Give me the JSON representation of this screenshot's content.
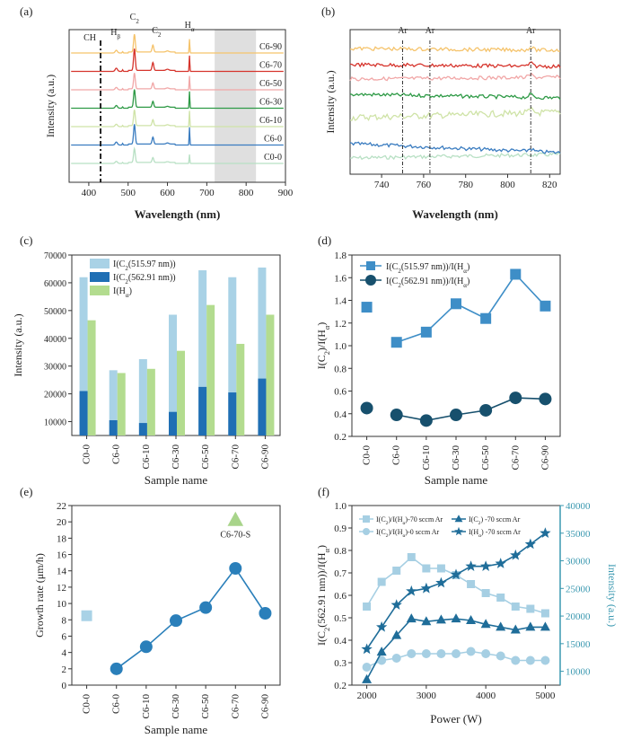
{
  "colors": {
    "light_blue": "#a9d2e6",
    "dark_blue": "#1f6fb4",
    "light_green": "#b3dc8f",
    "mid_blue": "#3e8ec7",
    "navy": "#17506d",
    "teal_axis": "#3a98b0",
    "shade": "#d2d2d2"
  },
  "chart_data": [
    {
      "panel": "(a)",
      "type": "line",
      "xlabel": "Wavelength (nm)",
      "ylabel": "Intensity (a.u.)",
      "xlim": [
        350,
        900
      ],
      "xticks": [
        "400",
        "500",
        "600",
        "700",
        "800",
        "900"
      ],
      "annotations": [
        {
          "label": "CH",
          "x": 430
        },
        {
          "label": "Hβ",
          "x": 486
        },
        {
          "label": "C2",
          "x": 516
        },
        {
          "label": "C2",
          "x": 563
        },
        {
          "label": "Hα",
          "x": 656
        }
      ],
      "dashed_line_x": 430,
      "shaded_range": [
        720,
        825
      ],
      "series": [
        {
          "name": "C0-0",
          "color": "#b8e0c4",
          "offset": 0,
          "peaks": {
            "C2a": 0.7,
            "C2b": 0.25,
            "Ha": 0.45,
            "Hb": 0.05
          }
        },
        {
          "name": "C6-0",
          "color": "#3a7cc0",
          "offset": 1,
          "peaks": {
            "C2a": 1.0,
            "C2b": 0.35,
            "Ha": 0.9,
            "Hb": 0.08
          }
        },
        {
          "name": "C6-10",
          "color": "#cfe3a7",
          "offset": 2,
          "peaks": {
            "C2a": 0.8,
            "C2b": 0.3,
            "Ha": 0.8,
            "Hb": 0.06
          }
        },
        {
          "name": "C6-30",
          "color": "#2e9a46",
          "offset": 3,
          "peaks": {
            "C2a": 0.9,
            "C2b": 0.3,
            "Ha": 0.85,
            "Hb": 0.07
          }
        },
        {
          "name": "C6-50",
          "color": "#f1a7a7",
          "offset": 4,
          "peaks": {
            "C2a": 0.8,
            "C2b": 0.3,
            "Ha": 0.7,
            "Hb": 0.06
          }
        },
        {
          "name": "C6-70",
          "color": "#d6342c",
          "offset": 5,
          "peaks": {
            "C2a": 1.1,
            "C2b": 0.4,
            "Ha": 0.8,
            "Hb": 0.08
          }
        },
        {
          "name": "C6-90",
          "color": "#f5c36b",
          "offset": 6,
          "peaks": {
            "C2a": 0.9,
            "C2b": 0.35,
            "Ha": 0.7,
            "Hb": 0.07
          }
        }
      ]
    },
    {
      "panel": "(b)",
      "type": "line",
      "xlabel": "Wavelength (nm)",
      "ylabel": "Intensity (a.u.)",
      "xlim": [
        725,
        825
      ],
      "xticks": [
        "740",
        "760",
        "780",
        "800",
        "820"
      ],
      "annotations": [
        {
          "label": "Ar",
          "x": 750
        },
        {
          "label": "Ar",
          "x": 763
        },
        {
          "label": "Ar",
          "x": 811
        }
      ],
      "series": [
        {
          "name": "C0-0",
          "color": "#b8e0c4",
          "offset": 0
        },
        {
          "name": "C6-0",
          "color": "#3a7cc0",
          "offset": 1
        },
        {
          "name": "C6-10",
          "color": "#cfe3a7",
          "offset": 2
        },
        {
          "name": "C6-30",
          "color": "#2e9a46",
          "offset": 3
        },
        {
          "name": "C6-50",
          "color": "#f1a7a7",
          "offset": 4
        },
        {
          "name": "C6-70",
          "color": "#d6342c",
          "offset": 5
        },
        {
          "name": "C6-90",
          "color": "#f5c36b",
          "offset": 6
        }
      ]
    },
    {
      "panel": "(c)",
      "type": "bar",
      "xlabel": "Sample name",
      "ylabel": "Intensity (a.u.)",
      "ylim": [
        5000,
        70000
      ],
      "yticks": [
        "10000",
        "20000",
        "30000",
        "40000",
        "50000",
        "60000",
        "70000"
      ],
      "categories": [
        "C0-0",
        "C6-0",
        "C6-10",
        "C6-30",
        "C6-50",
        "C6-70",
        "C6-90"
      ],
      "series": [
        {
          "name": "I(C2(515.97 nm))",
          "color": "#a9d2e6",
          "values": [
            62000,
            28500,
            32500,
            48500,
            64500,
            62000,
            65500
          ]
        },
        {
          "name": "I(C2(562.91 nm))",
          "color": "#1f6fb4",
          "values": [
            21000,
            10500,
            9500,
            13500,
            22500,
            20500,
            25500
          ]
        },
        {
          "name": "I(Hα)",
          "color": "#b3dc8f",
          "values": [
            46500,
            27500,
            29000,
            35500,
            52000,
            38000,
            48500
          ]
        }
      ]
    },
    {
      "panel": "(d)",
      "type": "scatter",
      "xlabel": "Sample name",
      "ylabel": "I(C2)/I(Hα)",
      "ylim": [
        0.2,
        1.8
      ],
      "yticks": [
        "0.2",
        "0.4",
        "0.6",
        "0.8",
        "1.0",
        "1.2",
        "1.4",
        "1.6",
        "1.8"
      ],
      "categories": [
        "C0-0",
        "C6-0",
        "C6-10",
        "C6-30",
        "C6-50",
        "C6-70",
        "C6-90"
      ],
      "series": [
        {
          "name": "I(C2(515.97 nm))/I(Hα)",
          "color": "#3e8ec7",
          "marker": "square",
          "values": [
            1.34,
            1.03,
            1.12,
            1.37,
            1.24,
            1.63,
            1.35
          ]
        },
        {
          "name": "I(C2(562.91 nm))/I(Hα)",
          "color": "#17506d",
          "marker": "circle",
          "values": [
            0.45,
            0.39,
            0.34,
            0.39,
            0.43,
            0.54,
            0.53
          ]
        }
      ]
    },
    {
      "panel": "(e)",
      "type": "scatter",
      "xlabel": "Sample name",
      "ylabel": "Growth rate (μm/h)",
      "ylim": [
        0,
        22
      ],
      "yticks": [
        "0",
        "2",
        "4",
        "6",
        "8",
        "10",
        "12",
        "14",
        "16",
        "18",
        "20",
        "22"
      ],
      "categories": [
        "C0-0",
        "C6-0",
        "C6-10",
        "C6-30",
        "C6-50",
        "C6-70",
        "C6-90"
      ],
      "c00_square": {
        "x": "C0-0",
        "y": 8.5
      },
      "series": [
        {
          "name": "growth",
          "color": "#2a7fba",
          "values": [
            null,
            2.0,
            4.7,
            7.9,
            9.5,
            14.3,
            8.8
          ]
        }
      ],
      "special_point": {
        "label": "C6-70-S",
        "x": "C6-70",
        "y": 20.2,
        "color": "#a8d48a"
      }
    },
    {
      "panel": "(f)",
      "type": "line",
      "xlabel": "Power (W)",
      "ylabel": "I(C2(562.91 nm))/I(Hα)",
      "ylabel_right": "Intensity (a.u.)",
      "xlim": [
        1750,
        5250
      ],
      "xticks": [
        "2000",
        "3000",
        "4000",
        "5000"
      ],
      "ylim": [
        0.2,
        1.0
      ],
      "yticks": [
        "0.2",
        "0.3",
        "0.4",
        "0.5",
        "0.6",
        "0.7",
        "0.8",
        "0.9",
        "1.0"
      ],
      "ylim_right": [
        7500,
        40000
      ],
      "yticks_right": [
        "10000",
        "15000",
        "20000",
        "25000",
        "30000",
        "35000",
        "40000"
      ],
      "x": [
        2000,
        2250,
        2500,
        2750,
        3000,
        3250,
        3500,
        3750,
        4000,
        4250,
        4500,
        4750,
        5000
      ],
      "series": [
        {
          "name": "I(C2)/I(Hα)-70 sccm Ar",
          "axis": "left",
          "marker": "square",
          "color": "#a6cfe3",
          "values": [
            0.55,
            0.66,
            0.71,
            0.77,
            0.72,
            0.72,
            0.69,
            0.65,
            0.61,
            0.59,
            0.55,
            0.54,
            0.52
          ]
        },
        {
          "name": "I(C2)/I(Hα)-0 sccm Ar",
          "axis": "left",
          "marker": "circle",
          "color": "#a6cfe3",
          "values": [
            0.28,
            0.31,
            0.32,
            0.34,
            0.34,
            0.34,
            0.34,
            0.35,
            0.34,
            0.33,
            0.31,
            0.31,
            0.31
          ]
        },
        {
          "name": "I(C2) -70 sccm Ar",
          "axis": "right",
          "marker": "triangle",
          "color": "#1f6d99",
          "values": [
            8500,
            13500,
            16500,
            19500,
            19000,
            19300,
            19500,
            19200,
            18500,
            18000,
            17500,
            18000,
            18000
          ]
        },
        {
          "name": "I(Hα) -70 sccm Ar",
          "axis": "right",
          "marker": "star",
          "color": "#1f6d99",
          "values": [
            14000,
            18000,
            22000,
            24500,
            25000,
            26000,
            27500,
            29000,
            29000,
            29500,
            31000,
            33000,
            35000
          ]
        }
      ]
    }
  ]
}
